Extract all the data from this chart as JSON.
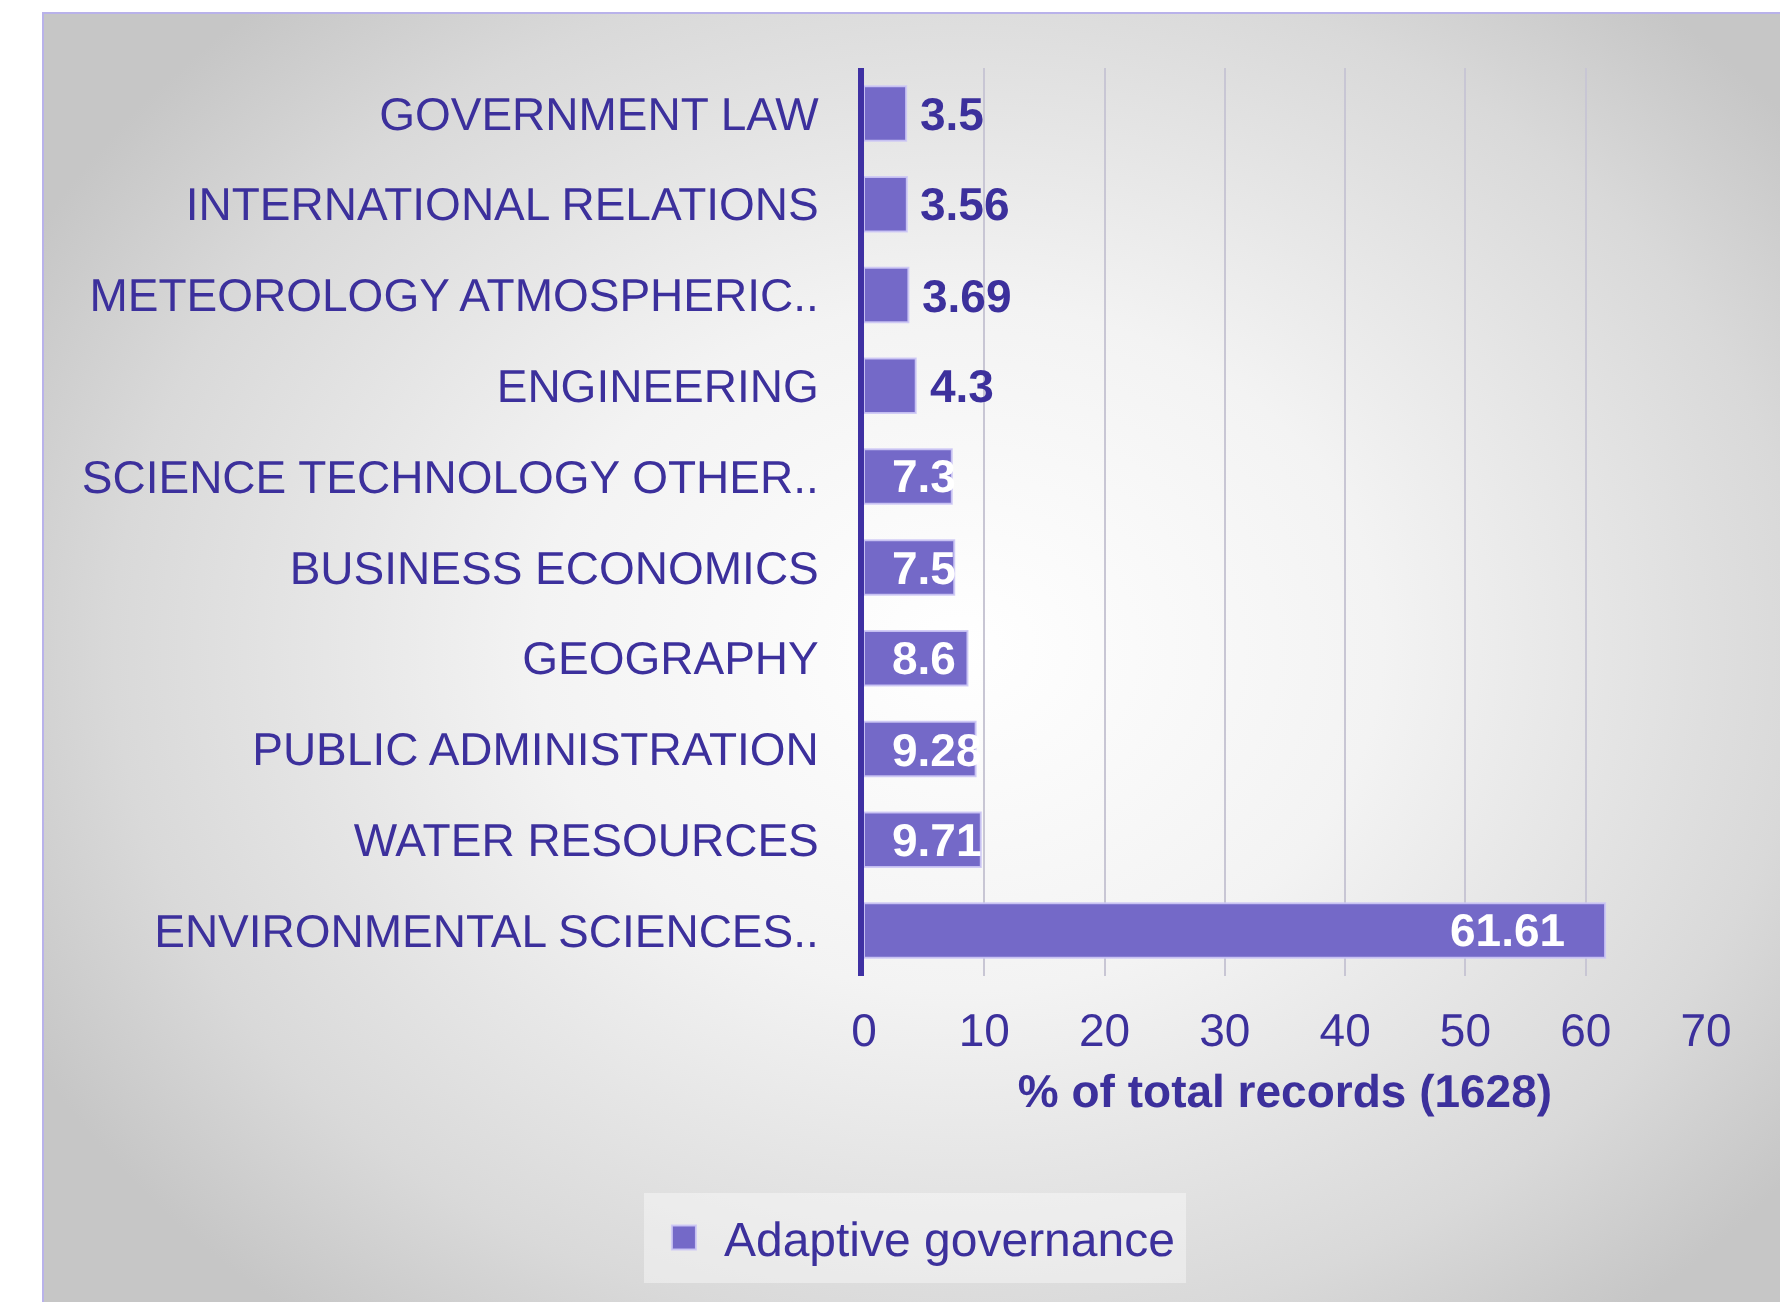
{
  "chart_data": {
    "type": "bar",
    "orientation": "horizontal",
    "categories": [
      "GOVERNMENT LAW",
      "INTERNATIONAL RELATIONS",
      "METEOROLOGY ATMOSPHERIC..",
      "ENGINEERING",
      "SCIENCE TECHNOLOGY OTHER..",
      "BUSINESS ECONOMICS",
      "GEOGRAPHY",
      "PUBLIC ADMINISTRATION",
      "WATER RESOURCES",
      "ENVIRONMENTAL SCIENCES.."
    ],
    "series": [
      {
        "name": "Adaptive governance",
        "color": "#7469c8",
        "values": [
          3.5,
          3.56,
          3.69,
          4.3,
          7.3,
          7.5,
          8.6,
          9.28,
          9.71,
          61.61
        ]
      }
    ],
    "xlabel": "% of total records (1628)",
    "xlim": [
      0,
      70
    ],
    "xticks": [
      0,
      10,
      20,
      30,
      40,
      50,
      60,
      70
    ],
    "grid": "x",
    "legend": "bottom",
    "data_labels": true
  }
}
